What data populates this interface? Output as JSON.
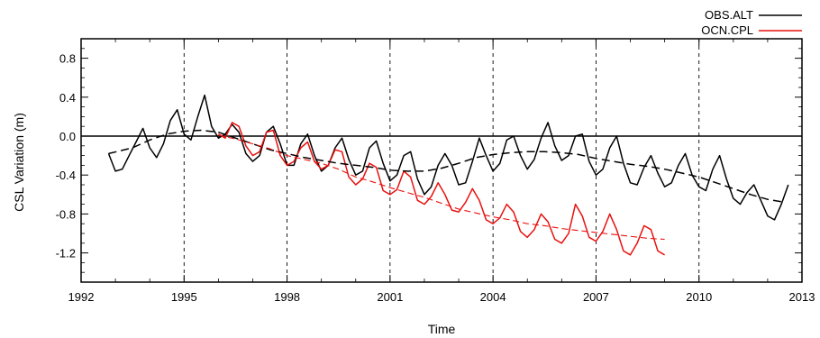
{
  "chart_data": {
    "type": "line",
    "xlabel": "Time",
    "ylabel": "CSL Variation (m)",
    "xlim": [
      1992,
      2013
    ],
    "ylim": [
      -1.5,
      1.0
    ],
    "x_ticks": [
      1992,
      1995,
      1998,
      2001,
      2004,
      2007,
      2010,
      2013
    ],
    "y_ticks": [
      0.8,
      0.4,
      0.0,
      -0.4,
      -0.8,
      -1.2
    ],
    "y_tick_labels": [
      "0.8",
      "0.4",
      "0.0",
      "-0.4",
      "-0.8",
      "-1.2"
    ],
    "vertical_grid_at": [
      1995,
      1998,
      2001,
      2004,
      2007,
      2010
    ],
    "reference_line_y": 0.0,
    "legend": {
      "position": "top-right"
    },
    "series": [
      {
        "name": "OBS.ALT",
        "color": "#000000",
        "style": "solid",
        "x": [
          1992.8,
          1993.0,
          1993.2,
          1993.4,
          1993.6,
          1993.8,
          1994.0,
          1994.2,
          1994.4,
          1994.6,
          1994.8,
          1995.0,
          1995.2,
          1995.4,
          1995.6,
          1995.8,
          1996.0,
          1996.2,
          1996.4,
          1996.6,
          1996.8,
          1997.0,
          1997.2,
          1997.4,
          1997.6,
          1997.8,
          1998.0,
          1998.2,
          1998.4,
          1998.6,
          1998.8,
          1999.0,
          1999.2,
          1999.4,
          1999.6,
          1999.8,
          2000.0,
          2000.2,
          2000.4,
          2000.6,
          2000.8,
          2001.0,
          2001.2,
          2001.4,
          2001.6,
          2001.8,
          2002.0,
          2002.2,
          2002.4,
          2002.6,
          2002.8,
          2003.0,
          2003.2,
          2003.4,
          2003.6,
          2003.8,
          2004.0,
          2004.2,
          2004.4,
          2004.6,
          2004.8,
          2005.0,
          2005.2,
          2005.4,
          2005.6,
          2005.8,
          2006.0,
          2006.2,
          2006.4,
          2006.6,
          2006.8,
          2007.0,
          2007.2,
          2007.4,
          2007.6,
          2007.8,
          2008.0,
          2008.2,
          2008.4,
          2008.6,
          2008.8,
          2009.0,
          2009.2,
          2009.4,
          2009.6,
          2009.8,
          2010.0,
          2010.2,
          2010.4,
          2010.6,
          2010.8,
          2011.0,
          2011.2,
          2011.4,
          2011.6,
          2011.8,
          2012.0,
          2012.2,
          2012.4,
          2012.6
        ],
        "values": [
          -0.18,
          -0.36,
          -0.34,
          -0.2,
          -0.06,
          0.08,
          -0.12,
          -0.22,
          -0.08,
          0.16,
          0.27,
          0.02,
          -0.04,
          0.2,
          0.42,
          0.1,
          -0.02,
          0.02,
          0.12,
          0.04,
          -0.18,
          -0.26,
          -0.2,
          0.04,
          0.1,
          -0.08,
          -0.3,
          -0.3,
          -0.08,
          0.02,
          -0.2,
          -0.36,
          -0.3,
          -0.12,
          -0.02,
          -0.24,
          -0.4,
          -0.36,
          -0.12,
          -0.05,
          -0.28,
          -0.46,
          -0.4,
          -0.2,
          -0.16,
          -0.44,
          -0.6,
          -0.52,
          -0.3,
          -0.18,
          -0.3,
          -0.5,
          -0.48,
          -0.26,
          -0.02,
          -0.2,
          -0.36,
          -0.28,
          -0.04,
          0.0,
          -0.2,
          -0.34,
          -0.24,
          -0.02,
          0.14,
          -0.1,
          -0.25,
          -0.2,
          0.0,
          0.02,
          -0.26,
          -0.4,
          -0.34,
          -0.12,
          0.0,
          -0.28,
          -0.48,
          -0.5,
          -0.32,
          -0.2,
          -0.38,
          -0.52,
          -0.48,
          -0.3,
          -0.18,
          -0.4,
          -0.52,
          -0.56,
          -0.34,
          -0.2,
          -0.44,
          -0.64,
          -0.7,
          -0.58,
          -0.5,
          -0.66,
          -0.82,
          -0.86,
          -0.7,
          -0.5
        ]
      },
      {
        "name": "OCN.CPL",
        "color": "#e8110f",
        "style": "solid",
        "x": [
          1996.0,
          1996.2,
          1996.4,
          1996.6,
          1996.8,
          1997.0,
          1997.2,
          1997.4,
          1997.6,
          1997.8,
          1998.0,
          1998.2,
          1998.4,
          1998.6,
          1998.8,
          1999.0,
          1999.2,
          1999.4,
          1999.6,
          1999.8,
          2000.0,
          2000.2,
          2000.4,
          2000.6,
          2000.8,
          2001.0,
          2001.2,
          2001.4,
          2001.6,
          2001.8,
          2002.0,
          2002.2,
          2002.4,
          2002.6,
          2002.8,
          2003.0,
          2003.2,
          2003.4,
          2003.6,
          2003.8,
          2004.0,
          2004.2,
          2004.4,
          2004.6,
          2004.8,
          2005.0,
          2005.2,
          2005.4,
          2005.6,
          2005.8,
          2006.0,
          2006.2,
          2006.4,
          2006.6,
          2006.8,
          2007.0,
          2007.2,
          2007.4,
          2007.6,
          2007.8,
          2008.0,
          2008.2,
          2008.4,
          2008.6,
          2008.8,
          2009.0
        ],
        "values": [
          0.02,
          -0.02,
          0.14,
          0.1,
          -0.1,
          -0.2,
          -0.16,
          0.04,
          0.06,
          -0.2,
          -0.3,
          -0.26,
          -0.12,
          -0.06,
          -0.26,
          -0.34,
          -0.3,
          -0.14,
          -0.16,
          -0.42,
          -0.5,
          -0.44,
          -0.28,
          -0.32,
          -0.56,
          -0.6,
          -0.55,
          -0.36,
          -0.42,
          -0.66,
          -0.7,
          -0.62,
          -0.48,
          -0.6,
          -0.76,
          -0.78,
          -0.68,
          -0.54,
          -0.66,
          -0.86,
          -0.9,
          -0.84,
          -0.7,
          -0.78,
          -0.98,
          -1.04,
          -0.96,
          -0.8,
          -0.88,
          -1.06,
          -1.1,
          -1.0,
          -0.7,
          -0.82,
          -1.04,
          -1.08,
          -0.98,
          -0.8,
          -0.96,
          -1.18,
          -1.22,
          -1.1,
          -0.92,
          -0.96,
          -1.18,
          -1.22
        ]
      },
      {
        "color": "#000000",
        "style": "dashed",
        "x": [
          1992.8,
          1993.5,
          1994.0,
          1994.5,
          1995.0,
          1995.5,
          1996.0,
          1996.5,
          1997.0,
          1997.5,
          1998.0,
          1998.5,
          1999.0,
          1999.5,
          2000.0,
          2000.5,
          2001.0,
          2001.5,
          2002.0,
          2002.5,
          2003.0,
          2003.5,
          2004.0,
          2004.5,
          2005.0,
          2005.5,
          2006.0,
          2006.5,
          2007.0,
          2007.5,
          2008.0,
          2008.5,
          2009.0,
          2009.5,
          2010.0,
          2010.5,
          2011.0,
          2011.5,
          2012.0,
          2012.5
        ],
        "values": [
          -0.18,
          -0.12,
          -0.04,
          0.02,
          0.05,
          0.06,
          0.04,
          -0.02,
          -0.08,
          -0.14,
          -0.18,
          -0.22,
          -0.25,
          -0.28,
          -0.3,
          -0.32,
          -0.35,
          -0.36,
          -0.36,
          -0.33,
          -0.28,
          -0.22,
          -0.19,
          -0.17,
          -0.16,
          -0.16,
          -0.17,
          -0.19,
          -0.23,
          -0.26,
          -0.29,
          -0.31,
          -0.34,
          -0.38,
          -0.42,
          -0.48,
          -0.54,
          -0.6,
          -0.65,
          -0.68
        ]
      },
      {
        "color": "#e8110f",
        "style": "dashed",
        "x": [
          1996.0,
          1996.5,
          1997.0,
          1997.5,
          1998.0,
          1998.5,
          1999.0,
          1999.5,
          2000.0,
          2000.5,
          2001.0,
          2001.5,
          2002.0,
          2002.5,
          2003.0,
          2003.5,
          2004.0,
          2004.5,
          2005.0,
          2005.5,
          2006.0,
          2006.5,
          2007.0,
          2007.5,
          2008.0,
          2008.5,
          2009.0
        ],
        "values": [
          0.01,
          -0.03,
          -0.08,
          -0.13,
          -0.2,
          -0.24,
          -0.28,
          -0.34,
          -0.42,
          -0.47,
          -0.53,
          -0.58,
          -0.63,
          -0.69,
          -0.75,
          -0.79,
          -0.83,
          -0.86,
          -0.9,
          -0.92,
          -0.95,
          -0.97,
          -0.99,
          -1.01,
          -1.03,
          -1.05,
          -1.06
        ]
      }
    ]
  }
}
